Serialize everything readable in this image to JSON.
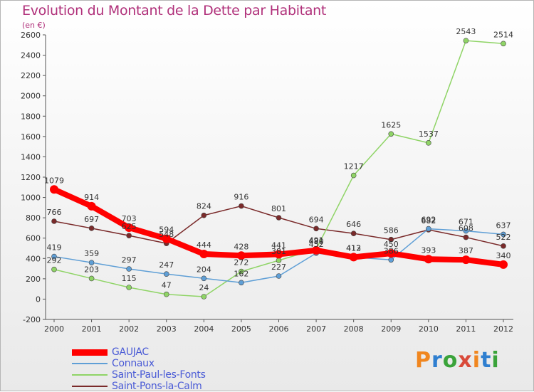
{
  "header": {
    "title": "Evolution du Montant de la Dette par Habitant",
    "unit": "(en €)"
  },
  "brand": {
    "letters": [
      "P",
      "r",
      "o",
      "x",
      "i",
      "t",
      "i"
    ]
  },
  "colors": {
    "gaujac": "#ff0000",
    "connaux": "#5f9fd6",
    "saint_paul": "#8fd466",
    "saint_pons": "#7a2a2a",
    "axis": "#555555",
    "grid": "#cccccc",
    "title": "#b0307a",
    "legend_text": "#4a5bd6"
  },
  "chart_data": {
    "type": "line",
    "title": "Evolution du Montant de la Dette par Habitant",
    "subtitle": "(en €)",
    "xlabel": "",
    "ylabel": "",
    "ylim": [
      -200,
      2600
    ],
    "yticks": [
      -200,
      0,
      200,
      400,
      600,
      800,
      1000,
      1200,
      1400,
      1600,
      1800,
      2000,
      2200,
      2400,
      2600
    ],
    "grid": false,
    "legend_position": "bottom-left",
    "x": [
      "2000",
      "2001",
      "2002",
      "2003",
      "2004",
      "2005",
      "2006",
      "2007",
      "2008",
      "2009",
      "2010",
      "2011",
      "2012"
    ],
    "series": [
      {
        "name": "GAUJAC",
        "values": [
          1079,
          914,
          703,
          594,
          444,
          428,
          441,
          480,
          413,
          450,
          393,
          387,
          340
        ],
        "labels": [
          "1079",
          "914",
          "703",
          "594",
          "444",
          "428",
          "441",
          "480",
          "413",
          "450",
          "393",
          "387",
          "340"
        ],
        "color": "#ff0000",
        "width": 8
      },
      {
        "name": "Connaux",
        "values": [
          419,
          359,
          297,
          247,
          204,
          162,
          227,
          452,
          412,
          386,
          692,
          671,
          637
        ],
        "labels": [
          "419",
          "359",
          "297",
          "247",
          "204",
          "162",
          "227",
          "452",
          "412",
          "386",
          "692",
          "671",
          "637"
        ],
        "color": "#5f9fd6",
        "width": 1.5
      },
      {
        "name": "Saint-Paul-les-Fonts",
        "values": [
          292,
          203,
          115,
          47,
          24,
          272,
          381,
          491,
          1217,
          1625,
          1537,
          2543,
          2514
        ],
        "labels": [
          "292",
          "203",
          "115",
          "47",
          "24",
          "272",
          "381",
          "491",
          "1217",
          "1625",
          "1537",
          "2543",
          "2514"
        ],
        "color": "#8fd466",
        "width": 1.5
      },
      {
        "name": "Saint-Pons-la-Calm",
        "values": [
          766,
          697,
          625,
          548,
          824,
          916,
          801,
          694,
          646,
          586,
          682,
          608,
          522
        ],
        "labels": [
          "766",
          "697",
          "625",
          "548",
          "824",
          "916",
          "801",
          "694",
          "646",
          "586",
          "682",
          "608",
          "522"
        ],
        "color": "#7a2a2a",
        "width": 1.5
      }
    ]
  }
}
